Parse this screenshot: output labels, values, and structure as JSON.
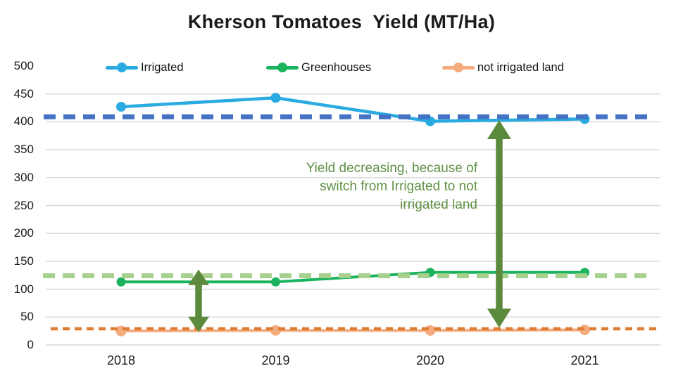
{
  "title": "Kherson Tomatoes  Yield (MT/Ha)",
  "chart_data": {
    "type": "line",
    "title": "Kherson Tomatoes  Yield (MT/Ha)",
    "categories": [
      "2018",
      "2019",
      "2020",
      "2021"
    ],
    "series": [
      {
        "name": "Irrigated",
        "color": "#29ABE2",
        "marker": "circle",
        "values": [
          427,
          443,
          401,
          405
        ]
      },
      {
        "name": "Greenhouses",
        "color": "#1CB35E",
        "marker": "circle",
        "values": [
          113,
          113,
          130,
          130
        ]
      },
      {
        "name": "not irrigated land",
        "color": "#F4AC7E",
        "marker": "circle",
        "values": [
          25,
          26,
          26,
          27
        ]
      }
    ],
    "trendlines": [
      {
        "for": "Irrigated",
        "style": "dashed",
        "color": "#4472C4",
        "value": 409
      },
      {
        "for": "Greenhouses",
        "style": "dashed",
        "color": "#A8D08D",
        "value": 124
      },
      {
        "for": "not irrigated land",
        "style": "dashed",
        "color": "#DE7C33",
        "value": 29
      }
    ],
    "y_ticks": [
      500,
      450,
      400,
      350,
      300,
      250,
      200,
      150,
      100,
      50,
      0
    ],
    "ylim": [
      0,
      500
    ],
    "grid": true,
    "grid_color": "#D9D9D9",
    "legend_position": "top",
    "annotations": [
      {
        "text": "Yield decreasing, because of\nswitch from Irrigated to not\nirrigated land",
        "color": "#5F9144"
      }
    ],
    "arrows": [
      {
        "name": "gap-greenhouses-vs-not-irrigated",
        "x_between": [
          "2018",
          "2019"
        ],
        "from_value": 135,
        "to_value": 23,
        "color": "#5C8A3C",
        "double_headed": true
      },
      {
        "name": "gap-irrigated-vs-not-irrigated",
        "x_between": [
          "2020",
          "2021"
        ],
        "from_value": 403,
        "to_value": 31,
        "color": "#5C8A3C",
        "double_headed": true
      }
    ]
  }
}
